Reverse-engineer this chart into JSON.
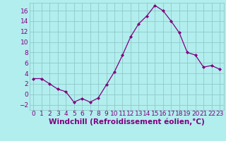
{
  "x": [
    0,
    1,
    2,
    3,
    4,
    5,
    6,
    7,
    8,
    9,
    10,
    11,
    12,
    13,
    14,
    15,
    16,
    17,
    18,
    19,
    20,
    21,
    22,
    23
  ],
  "y": [
    3,
    3,
    2,
    1,
    0.5,
    -1.5,
    -0.8,
    -1.5,
    -0.7,
    1.8,
    4.3,
    7.5,
    11,
    13.5,
    15,
    17,
    16,
    14,
    11.8,
    8,
    7.5,
    5.2,
    5.5,
    4.8
  ],
  "line_color": "#800080",
  "marker_color": "#800080",
  "bg_color": "#b2eeee",
  "grid_color": "#90c8c8",
  "text_color": "#800080",
  "xlabel": "Windchill (Refroidissement éolien,°C)",
  "ylim": [
    -3,
    17.5
  ],
  "yticks": [
    -2,
    0,
    2,
    4,
    6,
    8,
    10,
    12,
    14,
    16
  ],
  "xticks": [
    0,
    1,
    2,
    3,
    4,
    5,
    6,
    7,
    8,
    9,
    10,
    11,
    12,
    13,
    14,
    15,
    16,
    17,
    18,
    19,
    20,
    21,
    22,
    23
  ],
  "tick_fontsize": 6.5,
  "xlabel_fontsize": 7.5
}
